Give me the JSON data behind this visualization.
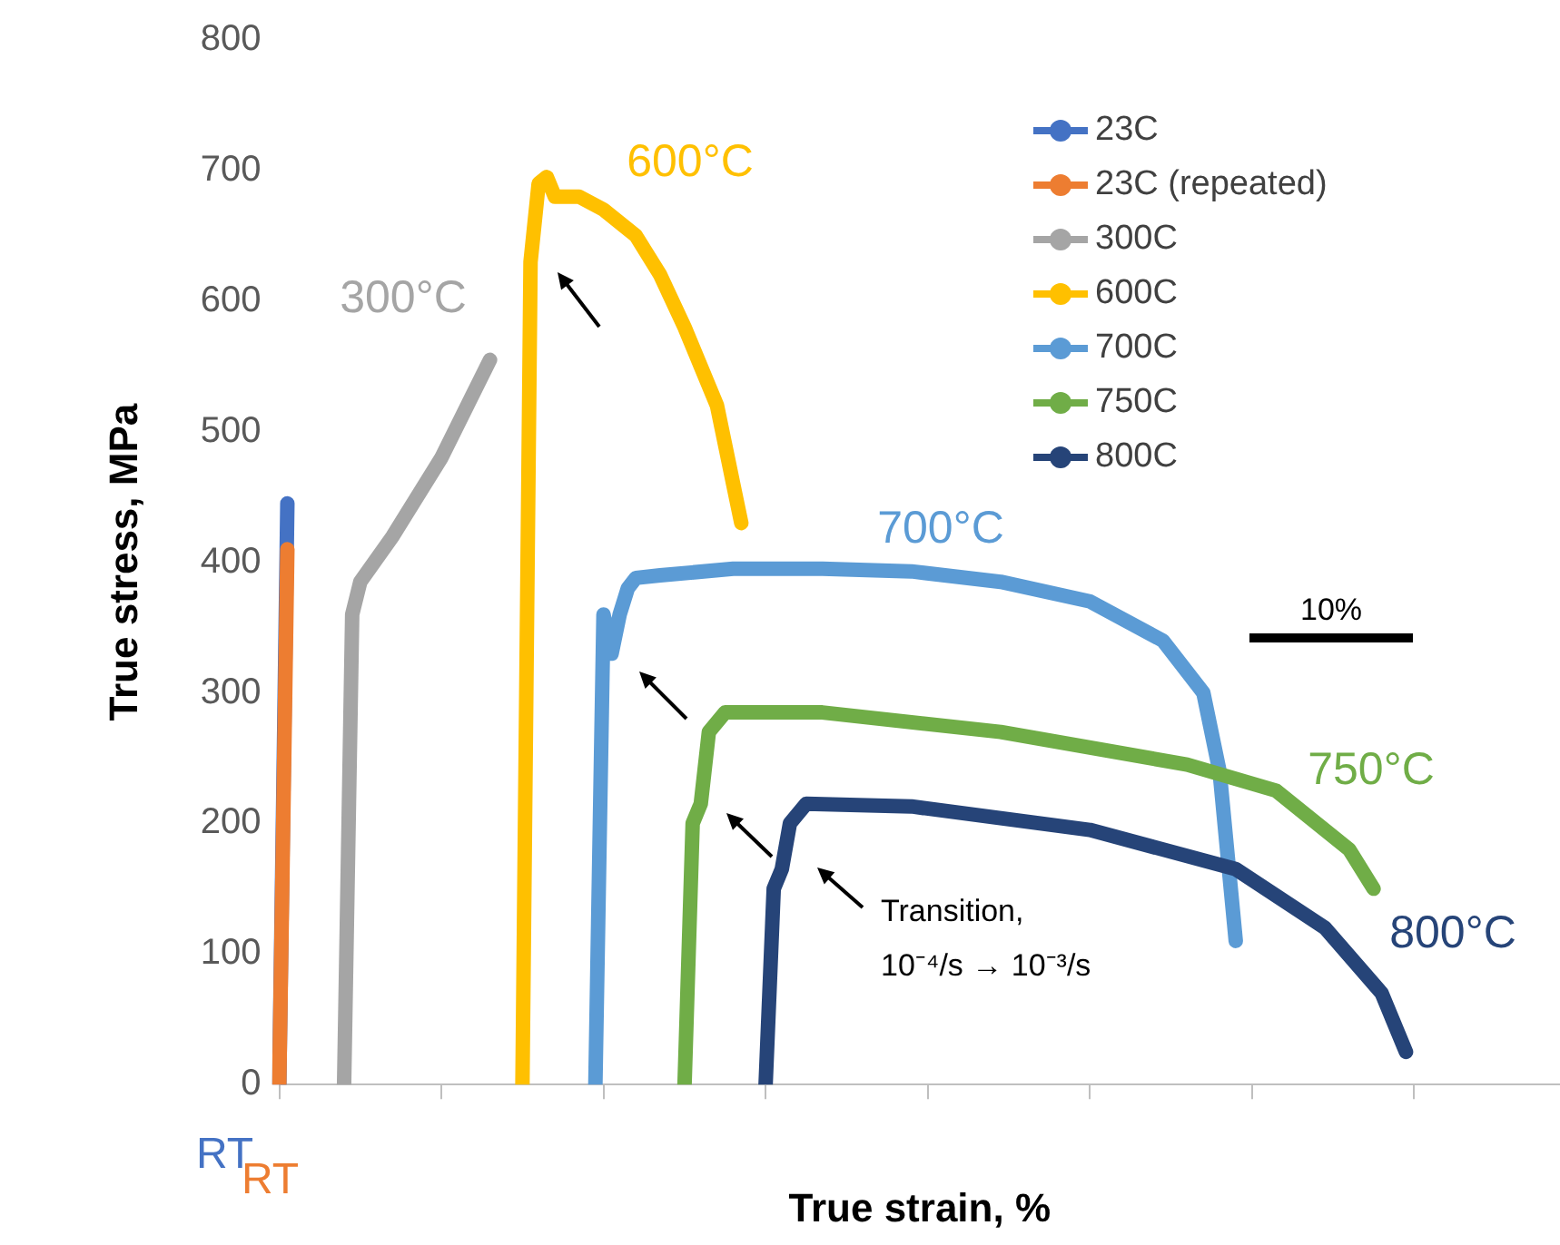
{
  "chart_data": {
    "type": "line",
    "xlabel": "True strain, %",
    "ylabel": "True stress, MPa",
    "categories": [
      null,
      null,
      null,
      null,
      null,
      null,
      null,
      null,
      null,
      null,
      null,
      null,
      null,
      null,
      null,
      null,
      null,
      null,
      null,
      null,
      null,
      null,
      null,
      null,
      null,
      null,
      null,
      null,
      null,
      null,
      null,
      null,
      null,
      null,
      null,
      null,
      null,
      null,
      null,
      null,
      null,
      null,
      null,
      null,
      null,
      null,
      null,
      null,
      null,
      null,
      null,
      null,
      null,
      null,
      null,
      null,
      null,
      null,
      null,
      null,
      null,
      null,
      null,
      null,
      null,
      null,
      null,
      null,
      null,
      null,
      null,
      null,
      null,
      null,
      null,
      null,
      null,
      null,
      null,
      null,
      null,
      null,
      null,
      null,
      null,
      null,
      null,
      null,
      null,
      null,
      null,
      null,
      null,
      null,
      null,
      null,
      null,
      null,
      null,
      null,
      null,
      null,
      null,
      null,
      null,
      null,
      null,
      null,
      null,
      null,
      null,
      null,
      null,
      null,
      null,
      null,
      null,
      null,
      null,
      null,
      null,
      null,
      null,
      null,
      null,
      null,
      null,
      null,
      null,
      null,
      null,
      null,
      null,
      null,
      null,
      null,
      null,
      null,
      null,
      null,
      null,
      null,
      null,
      null,
      null,
      null,
      null,
      null,
      null,
      null,
      null,
      null,
      null,
      null,
      null,
      null,
      null,
      null,
      null
    ],
    "ylim": [
      0,
      800
    ],
    "yticks": [
      0,
      100,
      200,
      300,
      400,
      500,
      600,
      700,
      800
    ],
    "tick_labels": "y",
    "grid": false,
    "legend": "top right",
    "marker": "none",
    "line_style": "solid",
    "series": [
      {
        "name": "23C",
        "color": "#4472c4",
        "values": [
          0,
          445,
          null,
          null,
          null,
          null,
          null,
          null,
          null,
          null,
          null,
          null,
          null,
          null,
          null,
          null,
          null,
          null,
          null,
          null,
          null,
          null,
          null,
          null,
          null,
          null,
          null,
          null,
          null,
          null,
          null,
          null,
          null,
          null,
          null,
          null,
          null,
          null,
          null,
          null,
          null,
          null,
          null,
          null,
          null,
          null,
          null,
          null,
          null,
          null,
          null,
          null,
          null,
          null,
          null,
          null,
          null,
          null,
          null,
          null,
          null,
          null,
          null,
          null,
          null,
          null,
          null,
          null,
          null,
          null,
          null,
          null,
          null,
          null,
          null,
          null,
          null,
          null,
          null,
          null,
          null,
          null,
          null,
          null,
          null,
          null,
          null,
          null,
          null,
          null,
          null,
          null,
          null,
          null,
          null,
          null,
          null,
          null,
          null,
          null,
          null,
          null,
          null,
          null,
          null,
          null,
          null,
          null,
          null,
          null,
          null,
          null,
          null,
          null,
          null,
          null,
          null,
          null,
          null,
          null,
          null,
          null,
          null,
          null,
          null,
          null,
          null,
          null,
          null,
          null,
          null,
          null,
          null,
          null,
          null,
          null,
          null,
          null,
          null,
          null,
          null,
          null,
          null,
          null,
          null,
          null,
          null,
          null,
          null,
          null,
          null,
          null,
          null,
          null,
          null,
          null,
          null,
          null,
          null
        ]
      },
      {
        "name": "23C (repeated)",
        "color": "#ed7d31",
        "values": [
          0,
          410,
          null,
          null,
          null,
          null,
          null,
          null,
          null,
          null,
          null,
          null,
          null,
          null,
          null,
          null,
          null,
          null,
          null,
          null,
          null,
          null,
          null,
          null,
          null,
          null,
          null,
          null,
          null,
          null,
          null,
          null,
          null,
          null,
          null,
          null,
          null,
          null,
          null,
          null,
          null,
          null,
          null,
          null,
          null,
          null,
          null,
          null,
          null,
          null,
          null,
          null,
          null,
          null,
          null,
          null,
          null,
          null,
          null,
          null,
          null,
          null,
          null,
          null,
          null,
          null,
          null,
          null,
          null,
          null,
          null,
          null,
          null,
          null,
          null,
          null,
          null,
          null,
          null,
          null,
          null,
          null,
          null,
          null,
          null,
          null,
          null,
          null,
          null,
          null,
          null,
          null,
          null,
          null,
          null,
          null,
          null,
          null,
          null,
          null,
          null,
          null,
          null,
          null,
          null,
          null,
          null,
          null,
          null,
          null,
          null,
          null,
          null,
          null,
          null,
          null,
          null,
          null,
          null,
          null,
          null,
          null,
          null,
          null,
          null,
          null,
          null,
          null,
          null,
          null,
          null,
          null,
          null,
          null,
          null,
          null,
          null,
          null,
          null,
          null,
          null,
          null,
          null,
          null,
          null,
          null,
          null,
          null,
          null,
          null,
          null,
          null,
          null,
          null,
          null,
          null,
          null,
          null,
          null
        ]
      },
      {
        "name": "300C",
        "color": "#a5a5a5",
        "values": [
          null,
          null,
          null,
          null,
          null,
          null,
          null,
          null,
          0,
          360,
          385,
          null,
          null,
          null,
          420,
          null,
          null,
          null,
          null,
          null,
          480,
          null,
          null,
          null,
          null,
          null,
          555,
          null,
          null,
          null,
          null,
          null,
          null,
          null,
          null,
          null,
          null,
          null,
          null,
          null,
          null,
          null,
          null,
          null,
          null,
          null,
          null,
          null,
          null,
          null,
          null,
          null,
          null,
          null,
          null,
          null,
          null,
          null,
          null,
          null,
          null,
          null,
          null,
          null,
          null,
          null,
          null,
          null,
          null,
          null,
          null,
          null,
          null,
          null,
          null,
          null,
          null,
          null,
          null,
          null,
          null,
          null,
          null,
          null,
          null,
          null,
          null,
          null,
          null,
          null,
          null,
          null,
          null,
          null,
          null,
          null,
          null,
          null,
          null,
          null,
          null,
          null,
          null,
          null,
          null,
          null,
          null,
          null,
          null,
          null,
          null,
          null,
          null,
          null,
          null,
          null,
          null,
          null,
          null,
          null,
          null,
          null,
          null,
          null,
          null,
          null,
          null,
          null,
          null,
          null,
          null,
          null,
          null,
          null,
          null,
          null,
          null,
          null,
          null,
          null,
          null,
          null,
          null,
          null,
          null,
          null,
          null,
          null,
          null,
          null,
          null,
          null,
          null,
          null,
          null,
          null,
          null,
          null,
          null
        ]
      },
      {
        "name": "600C",
        "color": "#ffc000",
        "values": [
          null,
          null,
          null,
          null,
          null,
          null,
          null,
          null,
          null,
          null,
          null,
          null,
          null,
          null,
          null,
          null,
          null,
          null,
          null,
          null,
          null,
          null,
          null,
          null,
          null,
          null,
          null,
          null,
          null,
          null,
          0,
          630,
          690,
          695,
          680,
          null,
          null,
          680,
          null,
          null,
          670,
          null,
          null,
          null,
          650,
          null,
          null,
          620,
          null,
          null,
          580,
          null,
          null,
          null,
          520,
          null,
          460,
          430,
          null,
          null,
          null,
          null,
          null,
          null,
          null,
          null,
          null,
          null,
          null,
          null,
          null,
          null,
          null,
          null,
          null,
          null,
          null,
          null,
          null,
          null,
          null,
          null,
          null,
          null,
          null,
          null,
          null,
          null,
          null,
          null,
          null,
          null,
          null,
          null,
          null,
          null,
          null,
          null,
          null,
          null,
          null,
          null,
          null,
          null,
          null,
          null,
          null,
          null,
          null,
          null,
          null,
          null,
          null,
          null,
          null,
          null,
          null,
          null,
          null,
          null,
          null,
          null,
          null,
          null,
          null,
          null,
          null,
          null,
          null,
          null,
          null,
          null,
          null,
          null,
          null,
          null,
          null,
          null,
          null,
          null,
          null,
          null,
          null,
          null,
          null,
          null,
          null,
          null,
          null,
          null,
          null,
          null,
          null,
          null,
          null,
          null,
          null,
          null,
          null
        ]
      },
      {
        "name": "700C",
        "color": "#5b9bd5",
        "values": [
          null,
          null,
          null,
          null,
          null,
          null,
          null,
          null,
          null,
          null,
          null,
          null,
          null,
          null,
          null,
          null,
          null,
          null,
          null,
          null,
          null,
          null,
          null,
          null,
          null,
          null,
          null,
          null,
          null,
          null,
          null,
          null,
          null,
          null,
          null,
          null,
          null,
          null,
          null,
          0,
          360,
          330,
          360,
          380,
          388,
          null,
          null,
          390,
          null,
          null,
          null,
          null,
          null,
          null,
          null,
          null,
          395,
          null,
          null,
          null,
          null,
          null,
          null,
          null,
          null,
          null,
          null,
          395,
          null,
          null,
          null,
          null,
          null,
          null,
          null,
          null,
          null,
          null,
          393,
          null,
          null,
          null,
          null,
          null,
          null,
          null,
          null,
          null,
          null,
          385,
          null,
          null,
          null,
          null,
          null,
          null,
          null,
          null,
          null,
          null,
          370,
          null,
          null,
          null,
          null,
          null,
          null,
          null,
          null,
          340,
          null,
          null,
          null,
          null,
          300,
          null,
          240,
          null,
          110,
          null,
          null,
          null,
          null,
          null,
          null,
          null,
          null,
          null,
          null,
          null,
          null,
          null,
          null,
          null,
          null,
          null,
          null,
          null,
          null,
          null,
          null,
          null,
          null,
          null,
          null,
          null,
          null,
          null,
          null,
          null,
          null,
          null,
          null,
          null,
          null,
          null,
          null,
          null,
          null
        ]
      },
      {
        "name": "750C",
        "color": "#70ad47",
        "values": [
          null,
          null,
          null,
          null,
          null,
          null,
          null,
          null,
          null,
          null,
          null,
          null,
          null,
          null,
          null,
          null,
          null,
          null,
          null,
          null,
          null,
          null,
          null,
          null,
          null,
          null,
          null,
          null,
          null,
          null,
          null,
          null,
          null,
          null,
          null,
          null,
          null,
          null,
          null,
          null,
          null,
          null,
          null,
          null,
          null,
          null,
          null,
          null,
          null,
          null,
          0,
          200,
          215,
          270,
          null,
          285,
          null,
          null,
          null,
          null,
          null,
          null,
          null,
          null,
          null,
          null,
          null,
          285,
          null,
          null,
          null,
          null,
          null,
          null,
          null,
          null,
          null,
          null,
          null,
          null,
          null,
          null,
          null,
          null,
          null,
          null,
          null,
          null,
          null,
          270,
          null,
          null,
          null,
          null,
          null,
          null,
          null,
          null,
          null,
          null,
          null,
          null,
          null,
          null,
          null,
          null,
          null,
          null,
          null,
          null,
          null,
          null,
          245,
          null,
          null,
          null,
          null,
          null,
          null,
          null,
          null,
          null,
          null,
          225,
          null,
          null,
          null,
          null,
          null,
          null,
          null,
          null,
          180,
          null,
          null,
          150,
          null,
          null,
          null,
          null,
          null,
          null,
          null,
          null,
          null,
          null,
          null,
          null,
          null,
          null,
          null,
          null,
          null,
          null,
          null,
          null,
          null,
          null,
          null
        ]
      },
      {
        "name": "800C",
        "color": "#264478",
        "values": [
          null,
          null,
          null,
          null,
          null,
          null,
          null,
          null,
          null,
          null,
          null,
          null,
          null,
          null,
          null,
          null,
          null,
          null,
          null,
          null,
          null,
          null,
          null,
          null,
          null,
          null,
          null,
          null,
          null,
          null,
          null,
          null,
          null,
          null,
          null,
          null,
          null,
          null,
          null,
          null,
          null,
          null,
          null,
          null,
          null,
          null,
          null,
          null,
          null,
          null,
          null,
          null,
          null,
          null,
          null,
          null,
          null,
          null,
          null,
          null,
          0,
          150,
          165,
          200,
          null,
          215,
          null,
          null,
          null,
          null,
          null,
          null,
          null,
          null,
          null,
          null,
          null,
          null,
          213,
          null,
          null,
          null,
          null,
          null,
          null,
          null,
          null,
          null,
          null,
          null,
          null,
          null,
          null,
          null,
          null,
          null,
          null,
          null,
          null,
          null,
          195,
          null,
          null,
          null,
          null,
          null,
          null,
          null,
          null,
          null,
          null,
          null,
          null,
          null,
          null,
          null,
          null,
          null,
          165,
          null,
          null,
          null,
          null,
          null,
          null,
          null,
          null,
          null,
          null,
          120,
          null,
          null,
          null,
          null,
          null,
          null,
          70,
          null,
          null,
          25,
          null,
          null,
          null,
          null,
          null,
          null,
          null,
          null,
          null,
          null,
          null,
          null,
          null,
          null,
          null,
          null,
          null,
          null,
          null
        ]
      }
    ],
    "annotations": [
      "RT",
      "RT",
      "300°C",
      "600°C",
      "700°C",
      "750°C",
      "800°C",
      "Transition,\n10⁻⁴/s → 10⁻³/s",
      "10%"
    ]
  }
}
